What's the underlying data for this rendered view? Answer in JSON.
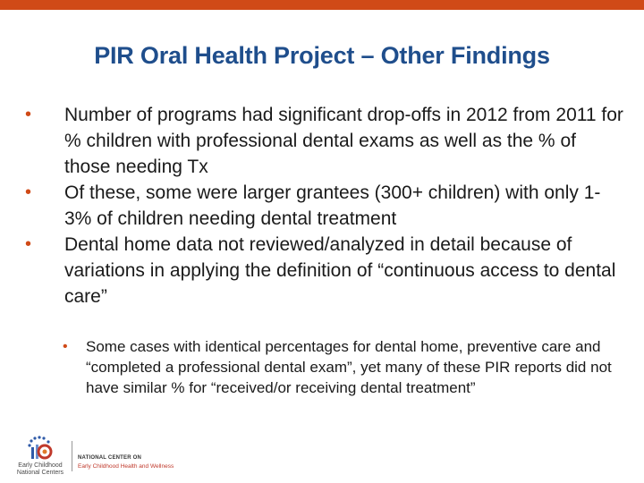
{
  "slide": {
    "accent_color": "#d04a17",
    "title_color": "#1f4e8c",
    "title": "PIR Oral Health Project – Other Findings",
    "bullets": [
      "Number of programs had significant drop-offs in 2012 from 2011 for % children with professional dental exams as well as the % of those needing Tx",
      "Of these, some were larger grantees (300+ children) with only 1-3% of children needing dental treatment",
      "Dental home data not reviewed/analyzed in detail because of variations in applying the definition of “continuous access to dental care”"
    ],
    "sub_bullets": [
      "Some cases with identical percentages for dental home, preventive care and “completed a professional dental exam”, yet many of these PIR reports did not have similar % for “received/or receiving dental treatment”"
    ]
  },
  "footer": {
    "logo_left_text": "Early Childhood\nNational Centers",
    "logo_right_line1": "NATIONAL CENTER ON",
    "logo_right_line2": "Early Childhood Health and Wellness"
  }
}
